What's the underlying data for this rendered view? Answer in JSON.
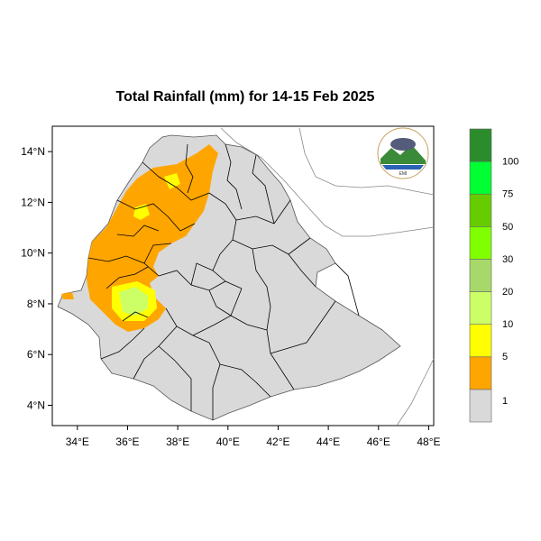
{
  "title": "Total Rainfall (mm) for 14-15 Feb 2025",
  "colors": {
    "background_land": "#d9d9d9",
    "plot_border": "#000000",
    "outside_boundaries": "#8c8c8c"
  },
  "axes": {
    "x_ticks": [
      "34°E",
      "36°E",
      "38°E",
      "40°E",
      "42°E",
      "44°E",
      "46°E",
      "48°E"
    ],
    "y_ticks": [
      "14°N",
      "12°N",
      "10°N",
      "8°N",
      "6°N",
      "4°N"
    ],
    "lon_range": [
      33,
      48.2
    ],
    "lat_range": [
      3.2,
      15
    ]
  },
  "legend": {
    "placement": "right",
    "bins": [
      {
        "label": "1",
        "color": "#d9d9d9"
      },
      {
        "label": "5",
        "color": "#ffa500"
      },
      {
        "label": "10",
        "color": "#ffff00"
      },
      {
        "label": "20",
        "color": "#ccff66"
      },
      {
        "label": "30",
        "color": "#a6d96a"
      },
      {
        "label": "50",
        "color": "#80ff00"
      },
      {
        "label": "75",
        "color": "#66cc00"
      },
      {
        "label": "100",
        "color": "#00ff33"
      },
      {
        "label": "",
        "color": "#2b8c2b"
      }
    ]
  },
  "logo": {
    "name": "ethiopian-meteorology-institute-logo",
    "text": "EMI"
  },
  "rain_region_colors": {
    "light": "#ffa500",
    "moderate": "#ffff00",
    "heavy": "#ccff66"
  }
}
